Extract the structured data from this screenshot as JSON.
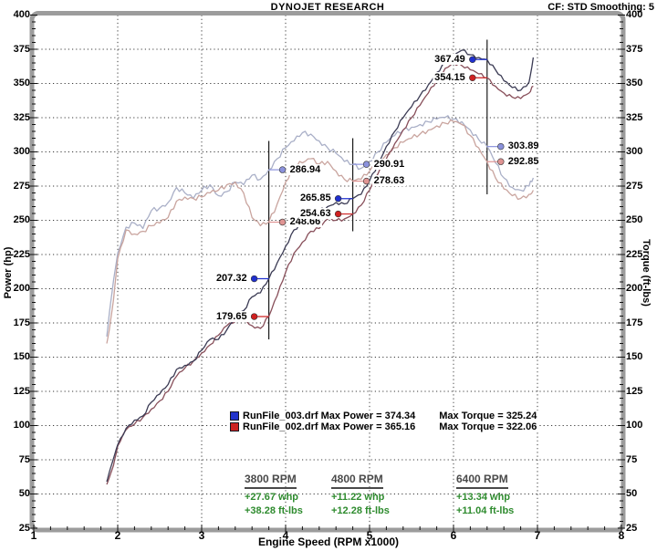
{
  "header": {
    "title": "DYNOJET RESEARCH",
    "settings": "CF: STD  Smoothing: 5"
  },
  "axes": {
    "x": {
      "label": "Engine Speed (RPM x1000)",
      "min": 1,
      "max": 8,
      "major_step": 1,
      "minor_step": 0.2
    },
    "y_left": {
      "label": "Power (hp)",
      "min": 25,
      "max": 400,
      "major_step": 25,
      "minor_step": 5
    },
    "y_right": {
      "label": "Torque (ft-lbs)",
      "min": 25,
      "max": 400,
      "major_step": 25,
      "minor_step": 5
    }
  },
  "legend": [
    {
      "file": "RunFile_003.drf",
      "power_text": "Max Power = 374.34",
      "torque_text": "Max Torque = 325.24",
      "color": "#2233cc"
    },
    {
      "file": "RunFile_002.drf",
      "power_text": "Max Power = 365.16",
      "torque_text": "Max Torque = 322.06",
      "color": "#cc2222"
    }
  ],
  "annotations": [
    {
      "rpm_label": "3800 RPM",
      "whp": "+27.67 whp",
      "ftlbs": "+38.28 ft-lbs"
    },
    {
      "rpm_label": "4800 RPM",
      "whp": "+11.22 whp",
      "ftlbs": "+12.28 ft-lbs"
    },
    {
      "rpm_label": "6400 RPM",
      "whp": "+13.34 whp",
      "ftlbs": "+11.04 ft-lbs"
    }
  ],
  "chart_data": {
    "type": "line",
    "title": "DYNOJET RESEARCH",
    "xlabel": "Engine Speed (RPM x1000)",
    "ylabel_left": "Power (hp)",
    "ylabel_right": "Torque (ft-lbs)",
    "xlim": [
      1,
      8
    ],
    "ylim": [
      25,
      400
    ],
    "grid": "dotted",
    "x_rpm": [
      1870,
      1900,
      1950,
      2000,
      2100,
      2200,
      2300,
      2400,
      2500,
      2600,
      2700,
      2800,
      2900,
      3000,
      3100,
      3200,
      3300,
      3400,
      3500,
      3600,
      3700,
      3800,
      3900,
      4000,
      4100,
      4200,
      4300,
      4400,
      4500,
      4600,
      4700,
      4800,
      4900,
      5000,
      5100,
      5200,
      5300,
      5400,
      5500,
      5600,
      5700,
      5800,
      5900,
      6000,
      6100,
      6200,
      6300,
      6400,
      6500,
      6600,
      6700,
      6800,
      6900,
      6950
    ],
    "series": [
      {
        "name": "RunFile_003 Power (whp)",
        "color": "#3b3b54",
        "max": 374.34,
        "values": [
          59,
          66,
          76,
          86,
          98,
          104,
          107,
          117,
          123,
          130,
          141,
          144,
          147,
          155,
          163,
          163,
          170,
          180,
          184,
          194,
          197,
          207.3,
          219,
          231,
          243,
          248,
          253,
          257,
          260,
          263,
          262,
          265.9,
          269,
          279,
          291,
          304,
          315,
          325,
          333,
          341,
          349,
          358,
          365,
          370,
          374.3,
          371,
          369,
          367.5,
          360,
          352,
          347,
          345,
          351,
          369
        ]
      },
      {
        "name": "RunFile_002 Power (whp)",
        "color": "#884f5a",
        "max": 365.16,
        "values": [
          57,
          62,
          71,
          85,
          97,
          101,
          106,
          112,
          118,
          125,
          136,
          142,
          147,
          153,
          159,
          166,
          173,
          176,
          178,
          173,
          171,
          179.7,
          195,
          212,
          226,
          234,
          242,
          244,
          251,
          250,
          251,
          254.6,
          261,
          272,
          284,
          295,
          306,
          316,
          325,
          334,
          343,
          352,
          361,
          365.2,
          363,
          360,
          357,
          354.2,
          348,
          343,
          340,
          339,
          343,
          348
        ]
      },
      {
        "name": "RunFile_003 Torque (ft-lbs)",
        "color": "#a9afc7",
        "max": 325.24,
        "values": [
          165,
          182,
          206,
          226,
          245,
          248,
          244,
          257,
          259,
          263,
          274,
          270,
          266,
          272,
          276,
          268,
          271,
          278,
          276,
          283,
          280,
          286.9,
          295,
          303,
          308,
          314,
          313,
          308,
          303,
          299,
          293,
          290.9,
          288,
          293,
          300,
          307,
          312,
          316,
          318,
          320,
          322,
          324,
          325.2,
          324,
          322,
          316,
          309,
          303.9,
          292,
          281,
          274,
          272,
          275,
          281
        ]
      },
      {
        "name": "RunFile_002 Torque (ft-lbs)",
        "color": "#c9a49e",
        "max": 322.06,
        "values": [
          160,
          170,
          192,
          222,
          243,
          240,
          242,
          246,
          248,
          252,
          264,
          267,
          266,
          267,
          270,
          272,
          276,
          278,
          270,
          252,
          246,
          248.7,
          262,
          278,
          290,
          292,
          295,
          291,
          293,
          286,
          280,
          278.6,
          280,
          286,
          292,
          298,
          303,
          307,
          310,
          313,
          316,
          319,
          321,
          322.1,
          320,
          312,
          303,
          292.9,
          281,
          273,
          268,
          266,
          269,
          272
        ]
      }
    ],
    "marker_lines": [
      {
        "rpm": 3800,
        "value_top": 308,
        "value_bottom": 163
      },
      {
        "rpm": 4800,
        "value_top": 310,
        "value_bottom": 242
      },
      {
        "rpm": 6400,
        "value_top": 382,
        "value_bottom": 269
      }
    ],
    "markers": [
      {
        "line_rpm": 3800,
        "value": 286.94,
        "label": "286.94",
        "color": "#8b92dc",
        "side": "right"
      },
      {
        "line_rpm": 3800,
        "value": 248.66,
        "label": "248.66",
        "color": "#df9493",
        "side": "right"
      },
      {
        "line_rpm": 3800,
        "value": 207.32,
        "label": "207.32",
        "color": "#2030cf",
        "side": "left"
      },
      {
        "line_rpm": 3800,
        "value": 179.65,
        "label": "179.65",
        "color": "#cf2020",
        "side": "left"
      },
      {
        "line_rpm": 4800,
        "value": 290.91,
        "label": "290.91",
        "color": "#8b92dc",
        "side": "right"
      },
      {
        "line_rpm": 4800,
        "value": 278.63,
        "label": "278.63",
        "color": "#df9493",
        "side": "right"
      },
      {
        "line_rpm": 4800,
        "value": 265.85,
        "label": "265.85",
        "color": "#2030cf",
        "side": "left"
      },
      {
        "line_rpm": 4800,
        "value": 254.63,
        "label": "254.63",
        "color": "#cf2020",
        "side": "left"
      },
      {
        "line_rpm": 6400,
        "value": 367.49,
        "label": "367.49",
        "color": "#2030cf",
        "side": "left"
      },
      {
        "line_rpm": 6400,
        "value": 354.15,
        "label": "354.15",
        "color": "#cf2020",
        "side": "left"
      },
      {
        "line_rpm": 6400,
        "value": 303.89,
        "label": "303.89",
        "color": "#8b92dc",
        "side": "right"
      },
      {
        "line_rpm": 6400,
        "value": 292.85,
        "label": "292.85",
        "color": "#df9493",
        "side": "right"
      }
    ]
  }
}
